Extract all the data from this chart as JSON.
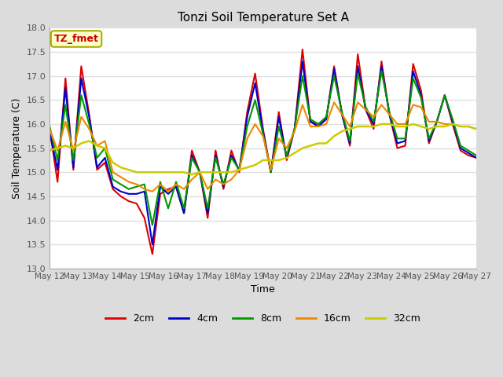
{
  "title": "Tonzi Soil Temperature Set A",
  "xlabel": "Time",
  "ylabel": "Soil Temperature (C)",
  "ylim": [
    13.0,
    18.0
  ],
  "yticks": [
    13.0,
    13.5,
    14.0,
    14.5,
    15.0,
    15.5,
    16.0,
    16.5,
    17.0,
    17.5,
    18.0
  ],
  "xtick_labels": [
    "May 12",
    "May 13",
    "May 14",
    "May 15",
    "May 16",
    "May 17",
    "May 18",
    "May 19",
    "May 20",
    "May 21",
    "May 22",
    "May 23",
    "May 24",
    "May 25",
    "May 26",
    "May 27"
  ],
  "legend_labels": [
    "2cm",
    "4cm",
    "8cm",
    "16cm",
    "32cm"
  ],
  "line_colors": [
    "#dd0000",
    "#0000cc",
    "#009900",
    "#ee8800",
    "#cccc00"
  ],
  "line_widths": [
    1.5,
    1.5,
    1.5,
    1.5,
    1.8
  ],
  "annotation_text": "TZ_fmet",
  "annotation_color": "#cc0000",
  "annotation_bg": "#ffffcc",
  "annotation_border": "#aaaa00",
  "fig_bg_color": "#dcdcdc",
  "plot_bg_color": "#ffffff",
  "grid_color": "#e0e0e0",
  "series_2cm": [
    15.9,
    14.8,
    16.95,
    15.05,
    17.2,
    16.2,
    15.05,
    15.2,
    14.65,
    14.5,
    14.4,
    14.35,
    14.05,
    13.3,
    14.55,
    14.65,
    14.7,
    14.15,
    15.45,
    15.0,
    14.05,
    15.45,
    14.65,
    15.45,
    15.0,
    16.25,
    17.05,
    15.9,
    15.0,
    16.25,
    15.25,
    15.9,
    17.55,
    16.05,
    16.0,
    16.1,
    17.2,
    16.2,
    15.55,
    17.45,
    16.3,
    15.9,
    17.3,
    16.2,
    15.5,
    15.55,
    17.25,
    16.7,
    15.6,
    16.05,
    16.6,
    16.0,
    15.45,
    15.35,
    15.3
  ],
  "series_4cm": [
    15.85,
    15.05,
    16.75,
    15.1,
    16.95,
    16.15,
    15.1,
    15.3,
    14.7,
    14.6,
    14.55,
    14.55,
    14.6,
    13.5,
    14.7,
    14.55,
    14.7,
    14.15,
    15.35,
    15.0,
    14.15,
    15.35,
    14.7,
    15.35,
    15.05,
    16.15,
    16.85,
    15.85,
    15.0,
    16.15,
    15.3,
    15.9,
    17.3,
    16.05,
    15.95,
    16.1,
    17.15,
    16.2,
    15.6,
    17.2,
    16.3,
    16.0,
    17.2,
    16.2,
    15.6,
    15.65,
    17.1,
    16.6,
    15.65,
    16.05,
    16.6,
    16.05,
    15.5,
    15.4,
    15.3
  ],
  "series_8cm": [
    15.95,
    15.25,
    16.4,
    15.25,
    16.6,
    16.0,
    15.3,
    15.5,
    14.85,
    14.75,
    14.65,
    14.7,
    14.75,
    13.9,
    14.8,
    14.25,
    14.8,
    14.25,
    15.3,
    15.0,
    14.25,
    15.3,
    14.75,
    15.3,
    15.05,
    15.95,
    16.5,
    15.8,
    15.0,
    15.95,
    15.35,
    15.9,
    17.0,
    16.1,
    16.0,
    16.15,
    17.0,
    16.25,
    15.65,
    17.05,
    16.35,
    16.05,
    17.1,
    16.25,
    15.7,
    15.7,
    16.95,
    16.55,
    15.7,
    16.05,
    16.6,
    16.1,
    15.55,
    15.45,
    15.35
  ],
  "series_16cm": [
    15.9,
    15.45,
    16.05,
    15.45,
    16.15,
    15.9,
    15.55,
    15.65,
    15.0,
    14.9,
    14.8,
    14.75,
    14.65,
    14.6,
    14.75,
    14.6,
    14.75,
    14.65,
    14.85,
    15.0,
    14.65,
    14.85,
    14.75,
    14.85,
    15.05,
    15.7,
    16.0,
    15.75,
    15.05,
    15.7,
    15.5,
    15.85,
    16.4,
    15.95,
    15.95,
    16.0,
    16.45,
    16.2,
    15.95,
    16.45,
    16.3,
    16.15,
    16.4,
    16.2,
    16.0,
    16.0,
    16.4,
    16.35,
    16.05,
    16.05,
    16.0,
    16.0,
    15.95,
    15.95,
    15.9
  ],
  "series_32cm": [
    15.45,
    15.5,
    15.55,
    15.5,
    15.6,
    15.65,
    15.55,
    15.5,
    15.2,
    15.1,
    15.05,
    15.0,
    15.0,
    15.0,
    15.0,
    15.0,
    15.0,
    15.0,
    14.95,
    15.0,
    15.0,
    15.0,
    15.0,
    15.0,
    15.05,
    15.1,
    15.15,
    15.25,
    15.25,
    15.25,
    15.3,
    15.4,
    15.5,
    15.55,
    15.6,
    15.6,
    15.75,
    15.85,
    15.9,
    15.95,
    15.95,
    15.95,
    16.0,
    16.0,
    15.95,
    15.95,
    16.0,
    15.95,
    15.9,
    15.95,
    15.95,
    16.0,
    15.95,
    15.95,
    15.9
  ]
}
